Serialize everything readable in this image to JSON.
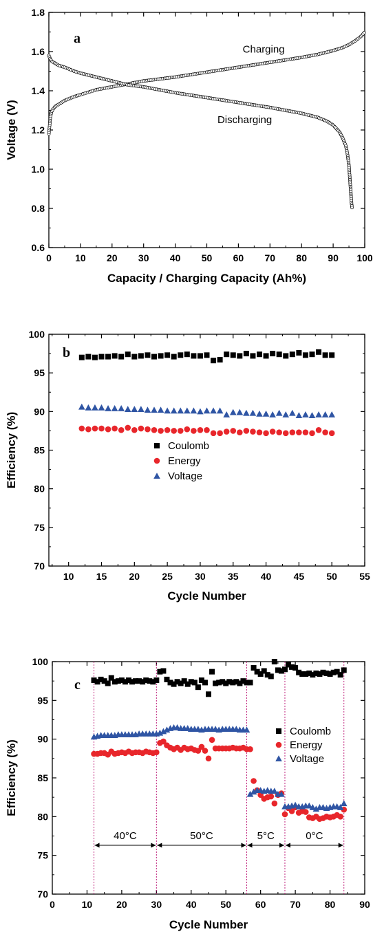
{
  "chart_data": [
    {
      "type": "line",
      "panel_label": "a",
      "xlabel": "Capacity / Charging Capacity (Ah%)",
      "ylabel": "Voltage (V)",
      "xlim": [
        0,
        100
      ],
      "ylim": [
        0.6,
        1.8
      ],
      "xticks": [
        "0",
        "10",
        "20",
        "30",
        "40",
        "50",
        "60",
        "70",
        "80",
        "90",
        "100"
      ],
      "yticks": [
        "0.6",
        "0.8",
        "1.0",
        "1.2",
        "1.4",
        "1.6",
        "1.8"
      ],
      "marker": "open-circle",
      "annotations": [
        "Charging",
        "Discharging"
      ],
      "series": [
        {
          "name": "Charging",
          "x": [
            0,
            0.5,
            1,
            2,
            3,
            5,
            8,
            10,
            15,
            20,
            25,
            30,
            40,
            50,
            60,
            70,
            80,
            85,
            90,
            93,
            95,
            97,
            99,
            100
          ],
          "y": [
            1.18,
            1.27,
            1.3,
            1.32,
            1.33,
            1.35,
            1.37,
            1.38,
            1.405,
            1.42,
            1.435,
            1.45,
            1.47,
            1.495,
            1.52,
            1.545,
            1.57,
            1.585,
            1.605,
            1.62,
            1.635,
            1.655,
            1.68,
            1.7
          ]
        },
        {
          "name": "Discharging",
          "x": [
            0,
            0.5,
            1,
            2,
            3,
            5,
            8,
            10,
            15,
            20,
            25,
            30,
            40,
            50,
            60,
            70,
            75,
            80,
            85,
            88,
            90,
            92,
            93,
            94,
            94.5,
            95,
            95.3,
            95.6,
            95.8,
            96
          ],
          "y": [
            1.58,
            1.56,
            1.55,
            1.54,
            1.53,
            1.52,
            1.5,
            1.49,
            1.47,
            1.45,
            1.43,
            1.42,
            1.39,
            1.365,
            1.34,
            1.315,
            1.3,
            1.285,
            1.265,
            1.245,
            1.225,
            1.19,
            1.16,
            1.12,
            1.08,
            1.02,
            0.95,
            0.88,
            0.83,
            0.8
          ]
        }
      ]
    },
    {
      "type": "scatter",
      "panel_label": "b",
      "xlabel": "Cycle Number",
      "ylabel": "Efficiency (%)",
      "xlim": [
        7,
        55
      ],
      "ylim": [
        70,
        100
      ],
      "xticks": [
        "10",
        "15",
        "20",
        "25",
        "30",
        "35",
        "40",
        "45",
        "50",
        "55"
      ],
      "yticks": [
        "70",
        "75",
        "80",
        "85",
        "90",
        "95",
        "100"
      ],
      "legend_position": "middle-left",
      "series": [
        {
          "name": "Coulomb",
          "color": "#000000",
          "marker": "square",
          "x": [
            12,
            13,
            14,
            15,
            16,
            17,
            18,
            19,
            20,
            21,
            22,
            23,
            24,
            25,
            26,
            27,
            28,
            29,
            30,
            31,
            32,
            33,
            34,
            35,
            36,
            37,
            38,
            39,
            40,
            41,
            42,
            43,
            44,
            45,
            46,
            47,
            48,
            49,
            50
          ],
          "y": [
            97.0,
            97.1,
            97.0,
            97.1,
            97.1,
            97.2,
            97.1,
            97.4,
            97.1,
            97.2,
            97.3,
            97.1,
            97.2,
            97.3,
            97.1,
            97.3,
            97.4,
            97.2,
            97.2,
            97.3,
            96.6,
            96.7,
            97.4,
            97.3,
            97.2,
            97.5,
            97.2,
            97.4,
            97.2,
            97.5,
            97.4,
            97.2,
            97.4,
            97.6,
            97.3,
            97.4,
            97.7,
            97.3,
            97.3
          ]
        },
        {
          "name": "Energy",
          "color": "#e8262b",
          "marker": "circle",
          "x": [
            12,
            13,
            14,
            15,
            16,
            17,
            18,
            19,
            20,
            21,
            22,
            23,
            24,
            25,
            26,
            27,
            28,
            29,
            30,
            31,
            32,
            33,
            34,
            35,
            36,
            37,
            38,
            39,
            40,
            41,
            42,
            43,
            44,
            45,
            46,
            47,
            48,
            49,
            50
          ],
          "y": [
            87.8,
            87.7,
            87.8,
            87.8,
            87.7,
            87.8,
            87.6,
            87.9,
            87.6,
            87.8,
            87.7,
            87.6,
            87.5,
            87.6,
            87.5,
            87.5,
            87.7,
            87.5,
            87.6,
            87.6,
            87.2,
            87.2,
            87.4,
            87.5,
            87.3,
            87.5,
            87.4,
            87.3,
            87.2,
            87.4,
            87.3,
            87.2,
            87.3,
            87.3,
            87.3,
            87.2,
            87.6,
            87.3,
            87.2
          ]
        },
        {
          "name": "Voltage",
          "color": "#2f55a4",
          "marker": "triangle",
          "x": [
            12,
            13,
            14,
            15,
            16,
            17,
            18,
            19,
            20,
            21,
            22,
            23,
            24,
            25,
            26,
            27,
            28,
            29,
            30,
            31,
            32,
            33,
            34,
            35,
            36,
            37,
            38,
            39,
            40,
            41,
            42,
            43,
            44,
            45,
            46,
            47,
            48,
            49,
            50
          ],
          "y": [
            90.6,
            90.5,
            90.5,
            90.5,
            90.4,
            90.4,
            90.4,
            90.3,
            90.3,
            90.3,
            90.2,
            90.2,
            90.2,
            90.1,
            90.1,
            90.1,
            90.1,
            90.1,
            90.0,
            90.1,
            90.1,
            90.1,
            89.6,
            89.9,
            89.9,
            89.8,
            89.8,
            89.7,
            89.7,
            89.6,
            89.8,
            89.6,
            89.8,
            89.5,
            89.6,
            89.5,
            89.6,
            89.6,
            89.6
          ]
        }
      ]
    },
    {
      "type": "scatter",
      "panel_label": "c",
      "xlabel": "Cycle Number",
      "ylabel": "Efficiency (%)",
      "xlim": [
        0,
        90
      ],
      "ylim": [
        70,
        100
      ],
      "xticks": [
        "0",
        "10",
        "20",
        "30",
        "40",
        "50",
        "60",
        "70",
        "80",
        "90"
      ],
      "yticks": [
        "70",
        "75",
        "80",
        "85",
        "90",
        "95",
        "100"
      ],
      "legend_position": "top-right",
      "dividers_x": [
        12,
        30,
        56,
        67,
        84
      ],
      "temperature_labels": [
        "40°C",
        "50°C",
        "5°C",
        "0°C"
      ],
      "temperature_label_y": 76.3,
      "series": [
        {
          "name": "Coulomb",
          "color": "#000000",
          "marker": "square",
          "x": [
            12,
            13,
            14,
            15,
            16,
            17,
            18,
            19,
            20,
            21,
            22,
            23,
            24,
            25,
            26,
            27,
            28,
            29,
            30,
            31,
            32,
            33,
            34,
            35,
            36,
            37,
            38,
            39,
            40,
            41,
            42,
            43,
            44,
            45,
            46,
            47,
            48,
            49,
            50,
            51,
            52,
            53,
            54,
            55,
            56,
            57,
            58,
            59,
            60,
            61,
            62,
            63,
            64,
            65,
            66,
            67,
            68,
            69,
            70,
            71,
            72,
            73,
            74,
            75,
            76,
            77,
            78,
            79,
            80,
            81,
            82,
            83,
            84
          ],
          "y": [
            97.6,
            97.4,
            97.7,
            97.5,
            97.2,
            97.9,
            97.4,
            97.5,
            97.6,
            97.4,
            97.6,
            97.4,
            97.5,
            97.5,
            97.4,
            97.6,
            97.5,
            97.4,
            97.6,
            98.7,
            98.8,
            97.7,
            97.3,
            97.1,
            97.4,
            97.2,
            97.5,
            97.1,
            97.4,
            97.3,
            96.7,
            97.6,
            97.3,
            95.8,
            98.7,
            97.2,
            97.3,
            97.4,
            97.2,
            97.4,
            97.3,
            97.4,
            97.2,
            97.5,
            97.3,
            97.3,
            99.2,
            98.7,
            98.4,
            98.8,
            98.3,
            98.1,
            100.0,
            98.9,
            98.8,
            99.0,
            99.6,
            99.3,
            99.2,
            98.6,
            98.4,
            98.4,
            98.5,
            98.3,
            98.5,
            98.4,
            98.6,
            98.5,
            98.4,
            98.6,
            98.7,
            98.3,
            98.9
          ]
        },
        {
          "name": "Energy",
          "color": "#e8262b",
          "marker": "circle",
          "x": [
            12,
            13,
            14,
            15,
            16,
            17,
            18,
            19,
            20,
            21,
            22,
            23,
            24,
            25,
            26,
            27,
            28,
            29,
            30,
            31,
            32,
            33,
            34,
            35,
            36,
            37,
            38,
            39,
            40,
            41,
            42,
            43,
            44,
            45,
            46,
            47,
            48,
            49,
            50,
            51,
            52,
            53,
            54,
            55,
            56,
            57,
            58,
            59,
            60,
            61,
            62,
            63,
            64,
            65,
            66,
            67,
            68,
            69,
            70,
            71,
            72,
            73,
            74,
            75,
            76,
            77,
            78,
            79,
            80,
            81,
            82,
            83,
            84
          ],
          "y": [
            88.1,
            88.1,
            88.2,
            88.2,
            88.0,
            88.4,
            88.1,
            88.2,
            88.3,
            88.2,
            88.4,
            88.2,
            88.3,
            88.3,
            88.2,
            88.4,
            88.3,
            88.2,
            88.3,
            89.5,
            89.7,
            89.2,
            88.9,
            88.7,
            88.9,
            88.6,
            88.9,
            88.7,
            88.8,
            88.6,
            88.5,
            89.0,
            88.5,
            87.5,
            89.9,
            88.8,
            88.8,
            88.8,
            88.8,
            88.8,
            88.9,
            88.8,
            88.8,
            88.9,
            88.7,
            88.7,
            84.6,
            83.4,
            82.8,
            82.3,
            82.5,
            82.6,
            81.7,
            82.8,
            83.0,
            80.3,
            81.1,
            80.7,
            81.2,
            80.5,
            80.7,
            80.6,
            79.9,
            79.8,
            80.0,
            79.7,
            79.8,
            80.0,
            79.9,
            80.0,
            80.2,
            80.0,
            80.9
          ]
        },
        {
          "name": "Voltage",
          "color": "#2f55a4",
          "marker": "triangle",
          "x": [
            12,
            13,
            14,
            15,
            16,
            17,
            18,
            19,
            20,
            21,
            22,
            23,
            24,
            25,
            26,
            27,
            28,
            29,
            30,
            31,
            32,
            33,
            34,
            35,
            36,
            37,
            38,
            39,
            40,
            41,
            42,
            43,
            44,
            45,
            46,
            47,
            48,
            49,
            50,
            51,
            52,
            53,
            54,
            55,
            56,
            57,
            58,
            59,
            60,
            61,
            62,
            63,
            64,
            65,
            66,
            67,
            68,
            69,
            70,
            71,
            72,
            73,
            74,
            75,
            76,
            77,
            78,
            79,
            80,
            81,
            82,
            83,
            84
          ],
          "y": [
            90.3,
            90.4,
            90.5,
            90.5,
            90.5,
            90.5,
            90.5,
            90.6,
            90.6,
            90.6,
            90.6,
            90.6,
            90.6,
            90.7,
            90.7,
            90.7,
            90.7,
            90.7,
            90.7,
            90.8,
            91.0,
            91.2,
            91.4,
            91.5,
            91.5,
            91.4,
            91.4,
            91.4,
            91.3,
            91.3,
            91.3,
            91.2,
            91.3,
            91.3,
            91.3,
            91.3,
            91.2,
            91.3,
            91.3,
            91.3,
            91.3,
            91.3,
            91.2,
            91.2,
            91.2,
            82.9,
            83.2,
            83.4,
            83.4,
            83.3,
            83.4,
            83.3,
            83.3,
            82.9,
            82.9,
            81.3,
            81.3,
            81.4,
            81.5,
            81.3,
            81.3,
            81.4,
            81.4,
            81.2,
            81.0,
            81.2,
            81.2,
            81.1,
            81.2,
            81.3,
            81.3,
            81.2,
            81.7
          ]
        }
      ]
    }
  ]
}
